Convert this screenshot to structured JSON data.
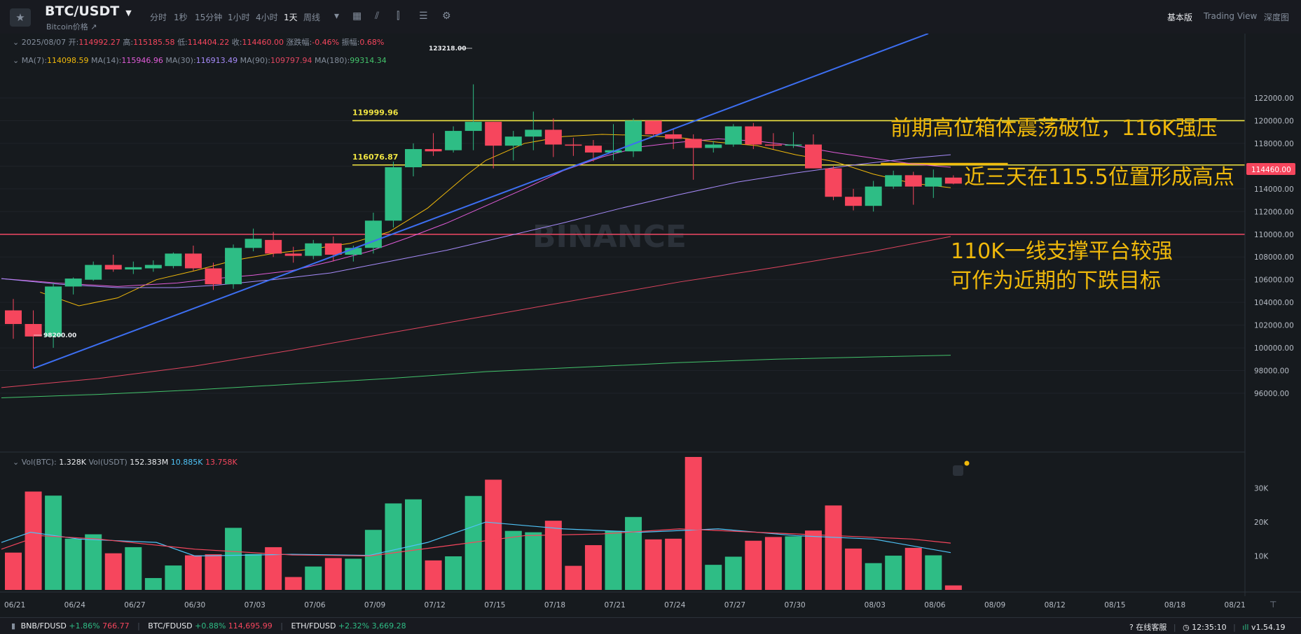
{
  "header": {
    "pair": "BTC/USDT",
    "subtitle": "Bitcoin价格",
    "timeframes": [
      "分时",
      "1秒",
      "15分钟",
      "1小时",
      "4小时",
      "1天",
      "周线"
    ],
    "active_timeframe": "1天",
    "views": [
      "基本版",
      "Trading View",
      "深度图"
    ],
    "active_view": "基本版"
  },
  "ohlc_info": {
    "date": "2025/08/07",
    "open_label": "开:",
    "open": "114992.27",
    "high_label": "高:",
    "high": "115185.58",
    "low_label": "低:",
    "low": "114404.22",
    "close_label": "收:",
    "close": "114460.00",
    "change_label": "涨跌幅:",
    "change": "-0.46%",
    "amp_label": "振幅:",
    "amp": "0.68%"
  },
  "ma_info": [
    {
      "label": "MA(7):",
      "value": "114098.59",
      "color": "#f0b90b"
    },
    {
      "label": "MA(14):",
      "value": "115946.96",
      "color": "#e05cd8"
    },
    {
      "label": "MA(30):",
      "value": "116913.49",
      "color": "#a78bfa"
    },
    {
      "label": "MA(90):",
      "value": "109797.94",
      "color": "#e0455f"
    },
    {
      "label": "MA(180):",
      "value": "99314.34",
      "color": "#43c36b"
    }
  ],
  "vol_info": {
    "label1": "Vol(BTC):",
    "v1": "1.328K",
    "label2": "Vol(USDT)",
    "v2": "152.383M",
    "v3": "10.885K",
    "v4": "13.758K"
  },
  "colors": {
    "up": "#2ebd85",
    "down": "#f6465d",
    "yellow": "#f0e442",
    "trend": "#3d6ff2",
    "support": "#e0455f",
    "annotation": "#f0b90b",
    "bg": "#161a1e"
  },
  "price_label": "114460.00",
  "watermark": "BINANCE",
  "annotations": [
    "前期高位箱体震荡破位，116K强压",
    "近三天在115.5位置形成高点",
    "110K一线支撑平台较强",
    "可作为近期的下跌目标"
  ],
  "bottom": {
    "tickers": [
      {
        "sym": "BNB/FDUSD",
        "chg": "+1.86%",
        "price": "766.77"
      },
      {
        "sym": "BTC/FDUSD",
        "chg": "+0.88%",
        "price": "114,695.99"
      },
      {
        "sym": "ETH/FDUSD",
        "chg": "+2.32%",
        "price": "3,669.28"
      }
    ],
    "service": "在线客服",
    "time": "12:35:10",
    "version": "v1.54.19"
  },
  "chart_data": {
    "type": "candlestick",
    "price_axis": {
      "min": 96000,
      "max": 122000,
      "step": 2000,
      "ticks": [
        "122000.00",
        "120000.00",
        "118000.00",
        "116000.00",
        "114000.00",
        "112000.00",
        "110000.00",
        "108000.00",
        "106000.00",
        "104000.00",
        "102000.00",
        "100000.00",
        "98000.00",
        "96000.00"
      ]
    },
    "volume_axis": {
      "ticks": [
        "30K",
        "20K",
        "10K"
      ]
    },
    "x_labels": [
      "06/21",
      "06/24",
      "06/27",
      "06/30",
      "07/03",
      "07/06",
      "07/09",
      "07/12",
      "07/15",
      "07/18",
      "07/21",
      "07/24",
      "07/27",
      "07/30",
      "08/03",
      "08/06",
      "08/09",
      "08/12",
      "08/15",
      "08/18",
      "08/21"
    ],
    "candles": [
      {
        "o": 103300,
        "h": 104300,
        "l": 100800,
        "c": 102100
      },
      {
        "o": 102100,
        "h": 103300,
        "l": 98200,
        "c": 101000
      },
      {
        "o": 101000,
        "h": 105700,
        "l": 100000,
        "c": 105400
      },
      {
        "o": 105400,
        "h": 106200,
        "l": 104700,
        "c": 106100
      },
      {
        "o": 106000,
        "h": 107600,
        "l": 105900,
        "c": 107300
      },
      {
        "o": 107300,
        "h": 108200,
        "l": 106700,
        "c": 106900
      },
      {
        "o": 106900,
        "h": 107600,
        "l": 106500,
        "c": 107100
      },
      {
        "o": 107000,
        "h": 107700,
        "l": 106700,
        "c": 107300
      },
      {
        "o": 107200,
        "h": 108400,
        "l": 107000,
        "c": 108300
      },
      {
        "o": 108300,
        "h": 109000,
        "l": 106800,
        "c": 107000
      },
      {
        "o": 107000,
        "h": 107500,
        "l": 105100,
        "c": 105600
      },
      {
        "o": 105600,
        "h": 109100,
        "l": 105200,
        "c": 108800
      },
      {
        "o": 108800,
        "h": 110500,
        "l": 108500,
        "c": 109600
      },
      {
        "o": 109500,
        "h": 110200,
        "l": 108000,
        "c": 108300
      },
      {
        "o": 108300,
        "h": 108900,
        "l": 107500,
        "c": 108100
      },
      {
        "o": 108100,
        "h": 109500,
        "l": 107800,
        "c": 109200
      },
      {
        "o": 109200,
        "h": 109800,
        "l": 107600,
        "c": 108200
      },
      {
        "o": 108200,
        "h": 109000,
        "l": 107600,
        "c": 108800
      },
      {
        "o": 108800,
        "h": 111900,
        "l": 108300,
        "c": 111200
      },
      {
        "o": 111200,
        "h": 116400,
        "l": 110600,
        "c": 115900
      },
      {
        "o": 115900,
        "h": 118000,
        "l": 115100,
        "c": 117500
      },
      {
        "o": 117500,
        "h": 118900,
        "l": 116900,
        "c": 117300
      },
      {
        "o": 117400,
        "h": 119500,
        "l": 117200,
        "c": 119100
      },
      {
        "o": 119100,
        "h": 123200,
        "l": 117400,
        "c": 119900
      },
      {
        "o": 119900,
        "h": 119900,
        "l": 115800,
        "c": 117800
      },
      {
        "o": 117800,
        "h": 119100,
        "l": 116500,
        "c": 118600
      },
      {
        "o": 118600,
        "h": 120800,
        "l": 117400,
        "c": 119200
      },
      {
        "o": 119200,
        "h": 120200,
        "l": 116800,
        "c": 117900
      },
      {
        "o": 117900,
        "h": 118500,
        "l": 116900,
        "c": 117800
      },
      {
        "o": 117800,
        "h": 118300,
        "l": 116400,
        "c": 117200
      },
      {
        "o": 117200,
        "h": 119700,
        "l": 116500,
        "c": 117400
      },
      {
        "o": 117300,
        "h": 120200,
        "l": 116800,
        "c": 120000
      },
      {
        "o": 120000,
        "h": 120000,
        "l": 118600,
        "c": 118800
      },
      {
        "o": 118800,
        "h": 119300,
        "l": 117500,
        "c": 118400
      },
      {
        "o": 118400,
        "h": 118800,
        "l": 114800,
        "c": 117600
      },
      {
        "o": 117600,
        "h": 118200,
        "l": 117200,
        "c": 117900
      },
      {
        "o": 117900,
        "h": 119700,
        "l": 117700,
        "c": 119500
      },
      {
        "o": 119500,
        "h": 119800,
        "l": 117500,
        "c": 117900
      },
      {
        "o": 117900,
        "h": 118900,
        "l": 117500,
        "c": 117800
      },
      {
        "o": 117800,
        "h": 119000,
        "l": 117600,
        "c": 117900
      },
      {
        "o": 117900,
        "h": 118800,
        "l": 115800,
        "c": 115800
      },
      {
        "o": 115800,
        "h": 116000,
        "l": 113000,
        "c": 113300
      },
      {
        "o": 113300,
        "h": 114000,
        "l": 112100,
        "c": 112500
      },
      {
        "o": 112500,
        "h": 114700,
        "l": 112000,
        "c": 114200
      },
      {
        "o": 114200,
        "h": 115600,
        "l": 114000,
        "c": 115200
      },
      {
        "o": 115200,
        "h": 115500,
        "l": 112600,
        "c": 114200
      },
      {
        "o": 114200,
        "h": 115700,
        "l": 113200,
        "c": 115000
      },
      {
        "o": 114990,
        "h": 115190,
        "l": 114400,
        "c": 114460
      }
    ],
    "volumes": [
      11000,
      29000,
      27800,
      15100,
      16400,
      10800,
      12600,
      3500,
      7200,
      10200,
      10500,
      18300,
      10600,
      12600,
      3800,
      6900,
      9400,
      9200,
      17700,
      25500,
      26700,
      8700,
      9900,
      27700,
      32500,
      17400,
      17000,
      20400,
      7100,
      13200,
      17400,
      21500,
      14900,
      15100,
      39200,
      7400,
      9800,
      14500,
      15600,
      15800,
      17500,
      24900,
      12200,
      7900,
      10100,
      12400,
      10200,
      1328
    ],
    "ma_lines": [
      {
        "name": "MA(7)",
        "color": "#f0b90b",
        "points": [
          [
            4,
            104900
          ],
          [
            8,
            103700
          ],
          [
            12,
            104400
          ],
          [
            16,
            106000
          ],
          [
            20,
            106800
          ],
          [
            24,
            107700
          ],
          [
            28,
            108300
          ],
          [
            32,
            108700
          ],
          [
            36,
            109200
          ],
          [
            40,
            110200
          ],
          [
            44,
            112300
          ],
          [
            48,
            115200
          ],
          [
            50,
            116500
          ],
          [
            54,
            118000
          ],
          [
            58,
            118600
          ],
          [
            62,
            118800
          ],
          [
            66,
            118700
          ],
          [
            70,
            118500
          ],
          [
            74,
            118100
          ],
          [
            78,
            117800
          ],
          [
            82,
            117000
          ],
          [
            86,
            116400
          ],
          [
            90,
            115300
          ],
          [
            94,
            114500
          ],
          [
            98,
            114100
          ]
        ]
      },
      {
        "name": "MA(14)",
        "color": "#e05cd8",
        "points": [
          [
            0,
            106100
          ],
          [
            6,
            105700
          ],
          [
            12,
            105400
          ],
          [
            18,
            105700
          ],
          [
            22,
            106100
          ],
          [
            26,
            106400
          ],
          [
            30,
            106800
          ],
          [
            34,
            107600
          ],
          [
            38,
            108500
          ],
          [
            42,
            109700
          ],
          [
            46,
            111000
          ],
          [
            50,
            112500
          ],
          [
            54,
            114000
          ],
          [
            58,
            115600
          ],
          [
            62,
            116800
          ],
          [
            66,
            117700
          ],
          [
            70,
            118100
          ],
          [
            74,
            118400
          ],
          [
            78,
            118200
          ],
          [
            82,
            117800
          ],
          [
            86,
            117200
          ],
          [
            90,
            116700
          ],
          [
            94,
            116200
          ],
          [
            98,
            115900
          ]
        ]
      },
      {
        "name": "MA(30)",
        "color": "#a78bfa",
        "points": [
          [
            0,
            106100
          ],
          [
            6,
            105600
          ],
          [
            12,
            105300
          ],
          [
            18,
            105300
          ],
          [
            22,
            105500
          ],
          [
            28,
            106000
          ],
          [
            34,
            106600
          ],
          [
            40,
            107600
          ],
          [
            46,
            108600
          ],
          [
            52,
            109800
          ],
          [
            58,
            111000
          ],
          [
            64,
            112300
          ],
          [
            70,
            113500
          ],
          [
            76,
            114600
          ],
          [
            82,
            115400
          ],
          [
            88,
            116100
          ],
          [
            94,
            116700
          ],
          [
            98,
            117000
          ]
        ]
      },
      {
        "name": "MA(90)",
        "color": "#e0455f",
        "points": [
          [
            0,
            96500
          ],
          [
            10,
            97300
          ],
          [
            20,
            98400
          ],
          [
            30,
            99800
          ],
          [
            40,
            101300
          ],
          [
            50,
            102800
          ],
          [
            60,
            104300
          ],
          [
            70,
            105800
          ],
          [
            80,
            107100
          ],
          [
            90,
            108500
          ],
          [
            98,
            109800
          ]
        ]
      },
      {
        "name": "MA(180)",
        "color": "#43c36b",
        "points": [
          [
            0,
            95600
          ],
          [
            10,
            95900
          ],
          [
            20,
            96300
          ],
          [
            30,
            96800
          ],
          [
            40,
            97300
          ],
          [
            50,
            97900
          ],
          [
            60,
            98300
          ],
          [
            70,
            98700
          ],
          [
            80,
            99000
          ],
          [
            90,
            99200
          ],
          [
            98,
            99350
          ]
        ]
      }
    ],
    "vol_ma_lines": [
      {
        "color": "#4fc3f7",
        "points": [
          [
            0,
            14000
          ],
          [
            3,
            17000
          ],
          [
            8,
            15000
          ],
          [
            16,
            14000
          ],
          [
            20,
            10000
          ],
          [
            30,
            10500
          ],
          [
            38,
            10200
          ],
          [
            44,
            14000
          ],
          [
            50,
            20000
          ],
          [
            58,
            18000
          ],
          [
            66,
            17000
          ],
          [
            74,
            18000
          ],
          [
            82,
            16000
          ],
          [
            90,
            15000
          ],
          [
            98,
            11000
          ]
        ]
      },
      {
        "color": "#f6465d",
        "points": [
          [
            0,
            12000
          ],
          [
            4,
            16000
          ],
          [
            10,
            15000
          ],
          [
            20,
            12000
          ],
          [
            30,
            10300
          ],
          [
            38,
            10000
          ],
          [
            46,
            13000
          ],
          [
            54,
            16000
          ],
          [
            62,
            16500
          ],
          [
            70,
            18000
          ],
          [
            78,
            17000
          ],
          [
            86,
            16000
          ],
          [
            94,
            15000
          ],
          [
            98,
            13800
          ]
        ]
      }
    ],
    "levels": [
      {
        "price": 120000,
        "label": "119999.96",
        "color": "#f0e442"
      },
      {
        "price": 116100,
        "label": "116076.87",
        "color": "#f0e442"
      },
      {
        "price": 110000,
        "label": "",
        "color": "#e0455f"
      }
    ],
    "high_marker": "123218.00",
    "low_marker": "98200.00",
    "trendline": {
      "from": {
        "x": 1,
        "price": 98200
      },
      "to": {
        "x": 33,
        "price": 122000
      }
    },
    "resistance_segment": {
      "price": 115700
    }
  }
}
